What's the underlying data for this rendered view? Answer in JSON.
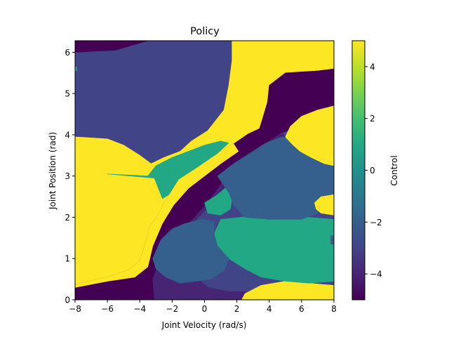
{
  "chart_data": {
    "type": "heatmap",
    "title": "Policy",
    "xlabel": "Joint Velocity (rad/s)",
    "ylabel": "Joint Position (rad)",
    "colorbar_label": "Control",
    "xlim": [
      -8,
      8
    ],
    "ylim": [
      0,
      6.28
    ],
    "clim": [
      -5,
      5
    ],
    "colormap": "viridis",
    "x_ticks": [
      -8,
      -6,
      -4,
      -2,
      0,
      2,
      4,
      6,
      8
    ],
    "x_tick_labels": [
      "−8",
      "−6",
      "−4",
      "−2",
      "0",
      "2",
      "4",
      "6",
      "8"
    ],
    "y_ticks": [
      0,
      1,
      2,
      3,
      4,
      5,
      6
    ],
    "y_tick_labels": [
      "0",
      "1",
      "2",
      "3",
      "4",
      "5",
      "6"
    ],
    "colorbar_ticks": [
      4,
      2,
      0,
      -2,
      -4
    ],
    "colorbar_tick_labels": [
      "4",
      "2",
      "0",
      "−2",
      "−4"
    ],
    "regions": [
      {
        "control": -3.0,
        "points": [
          [
            -8,
            6.28
          ],
          [
            8,
            6.28
          ],
          [
            8,
            0
          ],
          [
            -8,
            0
          ]
        ]
      },
      {
        "control": -5.0,
        "points": [
          [
            -8,
            6.28
          ],
          [
            -3.5,
            6.28
          ],
          [
            -5.5,
            6.05
          ],
          [
            -8,
            6.0
          ]
        ]
      },
      {
        "control": 5.0,
        "points": [
          [
            1.7,
            6.28
          ],
          [
            8,
            6.28
          ],
          [
            8,
            5.6
          ],
          [
            7,
            5.55
          ],
          [
            5,
            5.5
          ],
          [
            4,
            5.2
          ],
          [
            3.9,
            4.8
          ],
          [
            3.6,
            4.4
          ],
          [
            3.4,
            4.15
          ],
          [
            2.7,
            4.02
          ],
          [
            1.8,
            3.78
          ],
          [
            0.8,
            3.55
          ],
          [
            -0.5,
            3.2
          ],
          [
            -1.6,
            2.92
          ],
          [
            -2.2,
            2.55
          ],
          [
            -2.9,
            2.05
          ],
          [
            -3.4,
            1.75
          ],
          [
            -3.7,
            1.3
          ],
          [
            -4.0,
            0.95
          ],
          [
            -4.7,
            0.72
          ],
          [
            -6,
            0.55
          ],
          [
            -8,
            0.37
          ],
          [
            -8,
            3.95
          ],
          [
            -6,
            3.9
          ],
          [
            -5,
            3.75
          ],
          [
            -4,
            3.5
          ],
          [
            -3.3,
            3.3
          ],
          [
            -2.5,
            3.45
          ],
          [
            -1.5,
            3.6
          ],
          [
            -0.8,
            3.85
          ],
          [
            0.2,
            4.1
          ],
          [
            1.2,
            4.6
          ],
          [
            1.5,
            5.2
          ],
          [
            1.7,
            5.8
          ]
        ]
      },
      {
        "control": -5.0,
        "points": [
          [
            -8,
            0.37
          ],
          [
            -6,
            0.55
          ],
          [
            -4.7,
            0.72
          ],
          [
            -4.0,
            0.95
          ],
          [
            -3.7,
            1.3
          ],
          [
            -3.4,
            1.75
          ],
          [
            -2.9,
            2.05
          ],
          [
            -2.2,
            2.55
          ],
          [
            -1.6,
            2.92
          ],
          [
            -0.5,
            3.2
          ],
          [
            0.8,
            3.55
          ],
          [
            1.8,
            3.78
          ],
          [
            2.7,
            4.02
          ],
          [
            3.4,
            4.15
          ],
          [
            3.6,
            4.4
          ],
          [
            3.9,
            4.8
          ],
          [
            4,
            5.2
          ],
          [
            5,
            5.5
          ],
          [
            7,
            5.55
          ],
          [
            8,
            5.6
          ],
          [
            8,
            4.55
          ],
          [
            7.5,
            4.45
          ],
          [
            6.5,
            4.3
          ],
          [
            5.5,
            4.15
          ],
          [
            4.8,
            4.05
          ],
          [
            4.0,
            3.85
          ],
          [
            3.3,
            3.6
          ],
          [
            2.5,
            3.35
          ],
          [
            1.7,
            3.1
          ],
          [
            1.0,
            2.8
          ],
          [
            0.3,
            2.4
          ],
          [
            -0.5,
            2.05
          ],
          [
            -1.3,
            1.7
          ],
          [
            -2.2,
            1.3
          ],
          [
            -2.7,
            0.9
          ],
          [
            -3.0,
            0.5
          ],
          [
            -3.1,
            0
          ],
          [
            -8,
            0
          ]
        ]
      },
      {
        "control": 5.0,
        "points": [
          [
            -8,
            0.37
          ],
          [
            -6,
            0.55
          ],
          [
            -4.7,
            0.72
          ],
          [
            -4.0,
            0.95
          ],
          [
            -3.7,
            1.3
          ],
          [
            -3.4,
            1.75
          ],
          [
            -2.9,
            2.05
          ],
          [
            -2.2,
            2.55
          ],
          [
            -1.6,
            2.92
          ],
          [
            -0.5,
            3.2
          ],
          [
            0.8,
            3.55
          ],
          [
            1.8,
            3.78
          ],
          [
            2.1,
            3.6
          ],
          [
            1.0,
            3.3
          ],
          [
            0.0,
            3.0
          ],
          [
            -1.0,
            2.7
          ],
          [
            -1.9,
            2.3
          ],
          [
            -2.6,
            1.85
          ],
          [
            -3.2,
            1.3
          ],
          [
            -3.5,
            0.8
          ],
          [
            -4.3,
            0.55
          ],
          [
            -6,
            0.45
          ],
          [
            -8,
            0.3
          ]
        ]
      },
      {
        "control": -4.0,
        "points": [
          [
            -3.1,
            0
          ],
          [
            -3.0,
            0.5
          ],
          [
            -2.7,
            0.9
          ],
          [
            -2.2,
            1.3
          ],
          [
            -1.3,
            1.7
          ],
          [
            -0.5,
            2.05
          ],
          [
            0.3,
            2.4
          ],
          [
            1.0,
            2.8
          ],
          [
            1.7,
            3.1
          ],
          [
            2.5,
            3.35
          ],
          [
            3.3,
            3.6
          ],
          [
            4.0,
            3.85
          ],
          [
            4.8,
            4.05
          ],
          [
            5.0,
            3.95
          ],
          [
            4.5,
            3.8
          ],
          [
            3.8,
            3.6
          ],
          [
            2.8,
            3.25
          ],
          [
            1.8,
            2.85
          ],
          [
            0.5,
            2.35
          ],
          [
            -0.5,
            1.95
          ],
          [
            -1.5,
            1.5
          ],
          [
            -2.3,
            1.05
          ],
          [
            -2.6,
            0.6
          ],
          [
            -2.7,
            0
          ],
          [
            -3.1,
            0
          ]
        ]
      },
      {
        "control": -4.0,
        "points": [
          [
            -3.1,
            0
          ],
          [
            -3.2,
            0.5
          ],
          [
            -2.7,
            1.0
          ],
          [
            -1.8,
            1.25
          ],
          [
            -1.2,
            1.0
          ],
          [
            -0.8,
            0.65
          ],
          [
            0.2,
            0.3
          ],
          [
            1.5,
            0.2
          ],
          [
            2.5,
            0.2
          ],
          [
            3,
            0.1
          ],
          [
            3.5,
            0
          ]
        ]
      },
      {
        "control": 5.0,
        "points": [
          [
            2.3,
            0
          ],
          [
            2.5,
            0.15
          ],
          [
            3.5,
            0.35
          ],
          [
            5,
            0.45
          ],
          [
            6.5,
            0.4
          ],
          [
            8,
            0.35
          ],
          [
            8,
            0
          ]
        ]
      },
      {
        "control": 1.0,
        "points": [
          [
            -6.0,
            3.05
          ],
          [
            -3.5,
            3.0
          ],
          [
            -3.0,
            3.25
          ],
          [
            -2.0,
            3.45
          ],
          [
            -1.0,
            3.6
          ],
          [
            0.0,
            3.75
          ],
          [
            1.0,
            3.85
          ],
          [
            1.5,
            3.8
          ],
          [
            0.8,
            3.55
          ],
          [
            -0.5,
            3.2
          ],
          [
            -1.6,
            2.92
          ],
          [
            -2.2,
            2.55
          ],
          [
            -2.6,
            2.45
          ],
          [
            -3.1,
            2.95
          ]
        ]
      },
      {
        "control": 1.0,
        "points": [
          [
            0.0,
            2.35
          ],
          [
            0.8,
            2.55
          ],
          [
            1.4,
            2.75
          ],
          [
            1.8,
            2.7
          ],
          [
            1.6,
            2.2
          ],
          [
            1.0,
            2.05
          ],
          [
            0.2,
            2.1
          ]
        ]
      },
      {
        "control": 1.0,
        "points": [
          [
            1.0,
            1.95
          ],
          [
            2.2,
            2.0
          ],
          [
            3.5,
            2.05
          ],
          [
            5,
            2.05
          ],
          [
            6.5,
            2.0
          ],
          [
            8,
            1.95
          ],
          [
            8,
            0.45
          ],
          [
            6.5,
            0.4
          ],
          [
            5,
            0.45
          ],
          [
            3.5,
            0.55
          ],
          [
            2.5,
            0.75
          ],
          [
            1.5,
            1.0
          ],
          [
            0.8,
            1.3
          ],
          [
            0.6,
            1.6
          ]
        ]
      },
      {
        "control": -2.0,
        "points": [
          [
            -3.2,
            1.0
          ],
          [
            -2.7,
            1.45
          ],
          [
            -2.0,
            1.72
          ],
          [
            -1.2,
            1.85
          ],
          [
            -0.2,
            1.95
          ],
          [
            0.6,
            1.9
          ],
          [
            0.6,
            1.6
          ],
          [
            0.8,
            1.3
          ],
          [
            1.5,
            1.0
          ],
          [
            1.2,
            0.7
          ],
          [
            0.4,
            0.5
          ],
          [
            -0.5,
            0.45
          ],
          [
            -1.5,
            0.4
          ],
          [
            -2.4,
            0.55
          ],
          [
            -3.0,
            0.75
          ]
        ]
      },
      {
        "control": -2.0,
        "points": [
          [
            0.8,
            3.0
          ],
          [
            1.8,
            3.3
          ],
          [
            2.8,
            3.55
          ],
          [
            3.8,
            3.8
          ],
          [
            4.8,
            3.95
          ],
          [
            5.5,
            3.9
          ],
          [
            6.5,
            3.6
          ],
          [
            7.5,
            3.3
          ],
          [
            8,
            3.25
          ],
          [
            8,
            2.35
          ],
          [
            7,
            2.1
          ],
          [
            6,
            1.95
          ],
          [
            4,
            1.95
          ],
          [
            2.5,
            2.0
          ],
          [
            1.8,
            2.3
          ],
          [
            1.5,
            2.6
          ]
        ]
      },
      {
        "control": 5.0,
        "points": [
          [
            5.4,
            3.78
          ],
          [
            5.0,
            3.95
          ],
          [
            5.3,
            4.2
          ],
          [
            6.0,
            4.45
          ],
          [
            7.0,
            4.6
          ],
          [
            8,
            4.7
          ],
          [
            8,
            3.25
          ],
          [
            7.4,
            3.3
          ],
          [
            6.6,
            3.45
          ],
          [
            5.9,
            3.6
          ]
        ]
      },
      {
        "control": 5.0,
        "points": [
          [
            6.8,
            2.35
          ],
          [
            7.2,
            2.5
          ],
          [
            8,
            2.55
          ],
          [
            8,
            2.05
          ],
          [
            7.2,
            2.1
          ],
          [
            6.9,
            2.2
          ]
        ]
      },
      {
        "control": 1.0,
        "points": [
          [
            -8,
            5.65
          ],
          [
            -7.9,
            5.65
          ],
          [
            -7.9,
            5.55
          ],
          [
            -8,
            5.55
          ]
        ]
      },
      {
        "control": -2.0,
        "points": [
          [
            7.8,
            1.55
          ],
          [
            8,
            1.55
          ],
          [
            8,
            1.35
          ],
          [
            7.8,
            1.35
          ]
        ]
      }
    ]
  }
}
